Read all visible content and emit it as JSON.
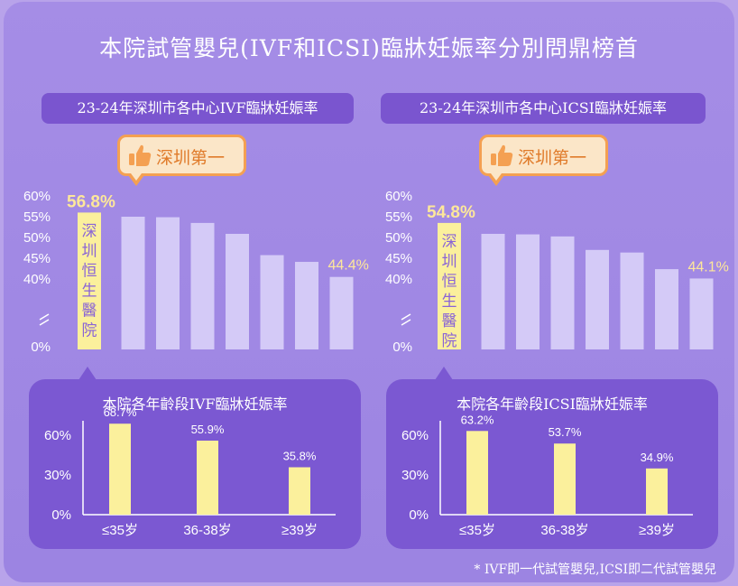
{
  "title": "本院試管嬰兒(IVF和ICSI)臨牀妊娠率分別問鼎榜首",
  "badge_text": "深圳第一",
  "footnote": "* IVF即一代試管嬰兒,ICSI即二代試管嬰兒",
  "colors": {
    "highlight_bar": "#fbf09c",
    "other_bar": "#d4caf7",
    "panel_bar": "#fbf09c",
    "panel_bg": "#7b58d2",
    "pill_bg": "#7a55cf"
  },
  "chart_data": [
    {
      "type": "bar",
      "title": "23-24年深圳市各中心IVF臨牀妊娠率",
      "y_ticks": [
        "60%",
        "55%",
        "50%",
        "45%",
        "40%",
        "0%"
      ],
      "ylim": [
        40,
        60
      ],
      "axis_break": true,
      "values": [
        56.8,
        56.0,
        55.9,
        54.8,
        52.7,
        48.6,
        47.3,
        44.4
      ],
      "highlight_index": 0,
      "highlight_label": "56.8%",
      "highlight_vertical_text": "深圳恒生醫院",
      "last_label": "44.4%"
    },
    {
      "type": "bar",
      "title": "23-24年深圳市各中心ICSI臨牀妊娠率",
      "y_ticks": [
        "60%",
        "55%",
        "50%",
        "45%",
        "40%",
        "0%"
      ],
      "ylim": [
        40,
        60
      ],
      "axis_break": true,
      "values": [
        54.8,
        52.7,
        52.6,
        52.2,
        49.6,
        49.1,
        45.9,
        44.1
      ],
      "highlight_index": 0,
      "highlight_label": "54.8%",
      "highlight_vertical_text": "深圳恒生醫院",
      "last_label": "44.1%"
    },
    {
      "type": "bar",
      "title": "本院各年齡段IVF臨牀妊娠率",
      "categories": [
        "≤35岁",
        "36-38岁",
        "≥39岁"
      ],
      "values": [
        68.7,
        55.9,
        35.8
      ],
      "labels": [
        "68.7%",
        "55.9%",
        "35.8%"
      ],
      "y_ticks": [
        "60%",
        "30%",
        "0%"
      ],
      "ylim": [
        0,
        60
      ]
    },
    {
      "type": "bar",
      "title": "本院各年齡段ICSI臨牀妊娠率",
      "categories": [
        "≤35岁",
        "36-38岁",
        "≥39岁"
      ],
      "values": [
        63.2,
        53.7,
        34.9
      ],
      "labels": [
        "63.2%",
        "53.7%",
        "34.9%"
      ],
      "y_ticks": [
        "60%",
        "30%",
        "0%"
      ],
      "ylim": [
        0,
        60
      ]
    }
  ]
}
